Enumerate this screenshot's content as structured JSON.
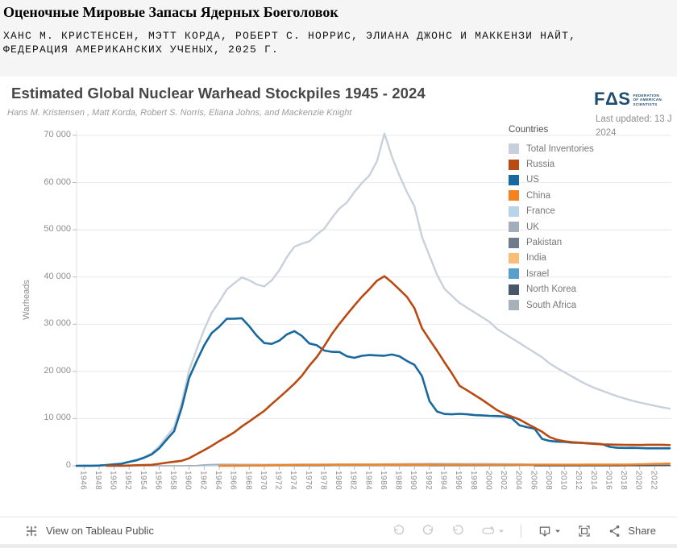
{
  "header": {
    "title": "Оценочные Мировые Запасы Ядерных Боеголовок",
    "authors_line1": "ХАНС М. КРИСТЕНСЕН, МЭТТ КОРДА, РОБЕРТ С. НОРРИС, ЭЛИАНА ДЖОНС И МАККЕНЗИ НАЙТ,",
    "authors_line2": "ФЕДЕРАЦИЯ АМЕРИКАНСКИХ УЧЕНЫХ, 2025 Г."
  },
  "viz": {
    "title": "Estimated Global Nuclear Warhead Stockpiles 1945 - 2024",
    "subtitle": "Hans M. Kristensen , Matt Korda, Robert S. Norris, Eliana Johns, and Mackenzie Knight",
    "fas": {
      "mark": "FΔS",
      "line1": "FEDERATION",
      "line2": "OF AMERICAN",
      "line3": "SCIENTISTS"
    },
    "last_updated_line1": "Last updated: 13 J",
    "last_updated_line2": "2024"
  },
  "legend": {
    "title": "Countries",
    "items": [
      {
        "label": "Total Inventories",
        "color": "#c8d1db"
      },
      {
        "label": "Russia",
        "color": "#b84a12"
      },
      {
        "label": "US",
        "color": "#19699f"
      },
      {
        "label": "China",
        "color": "#f58220"
      },
      {
        "label": "France",
        "color": "#b7d4ea"
      },
      {
        "label": "UK",
        "color": "#a4aeba"
      },
      {
        "label": "Pakistan",
        "color": "#6e7b8a"
      },
      {
        "label": "India",
        "color": "#f9bd77"
      },
      {
        "label": "Israel",
        "color": "#57a0ce"
      },
      {
        "label": "North Korea",
        "color": "#47586b"
      },
      {
        "label": "South Africa",
        "color": "#a7b1bc"
      }
    ]
  },
  "chart_data": {
    "type": "line",
    "title": "Estimated Global Nuclear Warhead Stockpiles 1945 - 2024",
    "xlabel": "",
    "ylabel": "Warheads",
    "xlim": [
      1945,
      2024
    ],
    "ylim": [
      0,
      70000
    ],
    "grid": "horizontal",
    "legend_position": "right-top",
    "x_ticks": [
      1946,
      1948,
      1950,
      1952,
      1954,
      1956,
      1958,
      1960,
      1962,
      1964,
      1966,
      1968,
      1970,
      1972,
      1974,
      1976,
      1978,
      1980,
      1982,
      1984,
      1986,
      1988,
      1990,
      1992,
      1994,
      1996,
      1998,
      2000,
      2002,
      2004,
      2006,
      2008,
      2010,
      2012,
      2014,
      2016,
      2018,
      2020,
      2022
    ],
    "y_ticks": [
      {
        "value": 0,
        "label": "0"
      },
      {
        "value": 10000,
        "label": "10 000"
      },
      {
        "value": 20000,
        "label": "20 000"
      },
      {
        "value": 30000,
        "label": "30 000"
      },
      {
        "value": 40000,
        "label": "40 000"
      },
      {
        "value": 50000,
        "label": "50 000"
      },
      {
        "value": 60000,
        "label": "60 000"
      },
      {
        "value": 70000,
        "label": "70 000"
      }
    ],
    "series": [
      {
        "name": "Total Inventories",
        "color": "#c8d1db",
        "width": 2.4,
        "values": [
          2,
          9,
          13,
          50,
          171,
          304,
          463,
          891,
          1290,
          1853,
          2632,
          4128,
          6213,
          8224,
          13368,
          20273,
          24731,
          28903,
          32422,
          34745,
          37350,
          38650,
          39900,
          39300,
          38420,
          38000,
          39300,
          41400,
          44200,
          46400,
          47050,
          47550,
          49000,
          50250,
          52500,
          54500,
          55800,
          58000,
          59900,
          61500,
          64500,
          70374,
          65500,
          61500,
          58000,
          55000,
          48500,
          44500,
          40500,
          37500,
          36000,
          34500,
          33500,
          32500,
          31500,
          30500,
          29000,
          28000,
          27000,
          26000,
          25000,
          24000,
          23000,
          21700,
          20700,
          19800,
          18900,
          18000,
          17200,
          16500,
          15900,
          15300,
          14750,
          14250,
          13800,
          13400,
          13080,
          12700,
          12400,
          12120
        ]
      },
      {
        "name": "France",
        "color": "#b7d4ea",
        "width": 1.6,
        "values": [
          null,
          null,
          null,
          null,
          null,
          null,
          null,
          null,
          null,
          null,
          null,
          null,
          null,
          null,
          null,
          4,
          10,
          20,
          30,
          40,
          50,
          60,
          70,
          80,
          90,
          100,
          110,
          120,
          135,
          150,
          165,
          180,
          200,
          220,
          235,
          250,
          270,
          290,
          310,
          330,
          360,
          390,
          420,
          450,
          480,
          505,
          520,
          540,
          535,
          525,
          500,
          490,
          480,
          475,
          470,
          470,
          455,
          445,
          435,
          420,
          350,
          340,
          330,
          320,
          310,
          300,
          300,
          300,
          300,
          300,
          300,
          300,
          300,
          300,
          290,
          290,
          290,
          290,
          290,
          290
        ]
      },
      {
        "name": "UK",
        "color": "#a4aeba",
        "width": 1.6,
        "values": [
          null,
          null,
          null,
          null,
          null,
          null,
          null,
          null,
          1,
          5,
          10,
          15,
          20,
          22,
          25,
          30,
          50,
          205,
          280,
          310,
          310,
          300,
          295,
          290,
          288,
          280,
          285,
          290,
          295,
          310,
          325,
          330,
          335,
          340,
          345,
          350,
          350,
          335,
          320,
          310,
          300,
          300,
          300,
          300,
          300,
          300,
          300,
          300,
          300,
          290,
          300,
          300,
          290,
          280,
          280,
          280,
          280,
          280,
          280,
          280,
          280,
          270,
          260,
          250,
          240,
          225,
          225,
          225,
          225,
          215,
          215,
          215,
          215,
          215,
          215,
          225,
          225,
          225,
          225,
          225
        ]
      },
      {
        "name": "Pakistan",
        "color": "#6e7b8a",
        "width": 1.6,
        "values": [
          null,
          null,
          null,
          null,
          null,
          null,
          null,
          null,
          null,
          null,
          null,
          null,
          null,
          null,
          null,
          null,
          null,
          null,
          null,
          null,
          null,
          null,
          null,
          null,
          null,
          null,
          null,
          null,
          null,
          null,
          null,
          null,
          null,
          null,
          null,
          null,
          null,
          null,
          null,
          null,
          null,
          null,
          1,
          2,
          4,
          6,
          8,
          10,
          12,
          13,
          14,
          16,
          18,
          20,
          24,
          28,
          32,
          36,
          40,
          44,
          50,
          60,
          70,
          80,
          85,
          90,
          100,
          110,
          115,
          120,
          125,
          130,
          140,
          150,
          155,
          160,
          165,
          165,
          170,
          170
        ]
      },
      {
        "name": "India",
        "color": "#f9bd77",
        "width": 1.6,
        "values": [
          null,
          null,
          null,
          null,
          null,
          null,
          null,
          null,
          null,
          null,
          null,
          null,
          null,
          null,
          null,
          null,
          null,
          null,
          null,
          null,
          null,
          null,
          null,
          null,
          null,
          null,
          null,
          null,
          null,
          1,
          1,
          1,
          1,
          2,
          2,
          3,
          3,
          4,
          4,
          5,
          5,
          6,
          6,
          7,
          7,
          7,
          8,
          9,
          10,
          12,
          14,
          16,
          18,
          20,
          23,
          26,
          30,
          34,
          38,
          41,
          44,
          50,
          60,
          70,
          75,
          80,
          90,
          100,
          105,
          110,
          115,
          120,
          130,
          140,
          150,
          156,
          160,
          164,
          168,
          172
        ]
      },
      {
        "name": "Israel",
        "color": "#57a0ce",
        "width": 1.6,
        "values": [
          null,
          null,
          null,
          null,
          null,
          null,
          null,
          null,
          null,
          null,
          null,
          null,
          null,
          null,
          null,
          null,
          null,
          null,
          null,
          null,
          null,
          null,
          2,
          4,
          6,
          8,
          10,
          13,
          15,
          18,
          20,
          22,
          25,
          27,
          29,
          31,
          33,
          35,
          38,
          40,
          42,
          44,
          47,
          49,
          51,
          53,
          55,
          57,
          59,
          61,
          63,
          64,
          66,
          68,
          70,
          72,
          74,
          76,
          77,
          78,
          80,
          80,
          80,
          80,
          80,
          80,
          80,
          80,
          80,
          80,
          80,
          80,
          80,
          80,
          90,
          90,
          90,
          90,
          90,
          90
        ]
      },
      {
        "name": "North Korea",
        "color": "#47586b",
        "width": 1.6,
        "values": [
          null,
          null,
          null,
          null,
          null,
          null,
          null,
          null,
          null,
          null,
          null,
          null,
          null,
          null,
          null,
          null,
          null,
          null,
          null,
          null,
          null,
          null,
          null,
          null,
          null,
          null,
          null,
          null,
          null,
          null,
          null,
          null,
          null,
          null,
          null,
          null,
          null,
          null,
          null,
          null,
          null,
          null,
          null,
          null,
          null,
          null,
          null,
          null,
          null,
          null,
          null,
          null,
          null,
          null,
          null,
          null,
          null,
          null,
          null,
          null,
          null,
          1,
          2,
          3,
          4,
          5,
          6,
          8,
          10,
          12,
          15,
          20,
          25,
          30,
          33,
          35,
          40,
          45,
          48,
          50
        ]
      },
      {
        "name": "South Africa",
        "color": "#a7b1bc",
        "width": 1.6,
        "values": [
          null,
          null,
          null,
          null,
          null,
          null,
          null,
          null,
          null,
          null,
          null,
          null,
          null,
          null,
          null,
          null,
          null,
          null,
          null,
          null,
          null,
          null,
          null,
          null,
          null,
          null,
          null,
          null,
          null,
          null,
          null,
          null,
          null,
          null,
          1,
          2,
          2,
          3,
          3,
          4,
          5,
          5,
          6,
          6,
          6,
          6,
          3,
          0,
          null,
          null,
          null,
          null,
          null,
          null,
          null,
          null,
          null,
          null,
          null,
          null,
          null,
          null,
          null,
          null,
          null,
          null,
          null,
          null,
          null,
          null,
          null,
          null,
          null,
          null,
          null,
          null,
          null,
          null,
          null,
          null
        ]
      },
      {
        "name": "US",
        "color": "#19699f",
        "width": 2.6,
        "values": [
          2,
          9,
          13,
          50,
          170,
          299,
          438,
          841,
          1169,
          1703,
          2422,
          3692,
          5543,
          7345,
          12298,
          18638,
          22229,
          25540,
          28133,
          29463,
          31139,
          31175,
          31255,
          29561,
          27552,
          26008,
          25830,
          26516,
          27835,
          28537,
          27519,
          25914,
          25542,
          24418,
          24138,
          24104,
          23208,
          22886,
          23305,
          23459,
          23368,
          23317,
          23575,
          23205,
          22217,
          21392,
          19008,
          13708,
          11511,
          10979,
          10904,
          11011,
          10903,
          10732,
          10685,
          10577,
          10526,
          10457,
          10027,
          8570,
          8170,
          7853,
          5709,
          5273,
          5113,
          5066,
          4897,
          4881,
          4804,
          4717,
          4571,
          4018,
          3822,
          3785,
          3805,
          3750,
          3708,
          3708,
          3708,
          3700
        ]
      },
      {
        "name": "Russia",
        "color": "#b84a12",
        "width": 2.6,
        "values": [
          null,
          null,
          null,
          null,
          1,
          5,
          25,
          50,
          120,
          150,
          200,
          426,
          660,
          869,
          1060,
          1605,
          2471,
          3322,
          4238,
          5221,
          6129,
          7089,
          8339,
          9399,
          10538,
          11643,
          13092,
          14478,
          15915,
          17385,
          19055,
          21205,
          23044,
          25393,
          27935,
          30062,
          32049,
          33952,
          35804,
          37431,
          39197,
          40159,
          38859,
          37333,
          35805,
          33417,
          29154,
          26734,
          24403,
          21927,
          19571,
          16977,
          16000,
          15000,
          14000,
          12900,
          11800,
          11000,
          10400,
          9800,
          8900,
          8100,
          7200,
          6100,
          5500,
          5200,
          5000,
          4900,
          4750,
          4650,
          4550,
          4500,
          4470,
          4440,
          4420,
          4410,
          4450,
          4450,
          4450,
          4380
        ]
      },
      {
        "name": "China",
        "color": "#f58220",
        "width": 2.4,
        "values": [
          null,
          null,
          null,
          null,
          null,
          null,
          null,
          null,
          null,
          null,
          null,
          null,
          null,
          null,
          null,
          null,
          null,
          null,
          null,
          1,
          5,
          20,
          25,
          35,
          50,
          75,
          100,
          130,
          150,
          170,
          185,
          190,
          200,
          220,
          235,
          240,
          245,
          250,
          255,
          258,
          260,
          262,
          262,
          260,
          258,
          256,
          255,
          253,
          252,
          250,
          249,
          248,
          246,
          245,
          244,
          243,
          242,
          241,
          240,
          239,
          238,
          237,
          236,
          235,
          238,
          240,
          242,
          245,
          248,
          252,
          256,
          260,
          268,
          276,
          290,
          320,
          360,
          410,
          450,
          500
        ]
      }
    ]
  },
  "toolbar": {
    "view_label": "View on Tableau Public",
    "share_label": "Share"
  }
}
